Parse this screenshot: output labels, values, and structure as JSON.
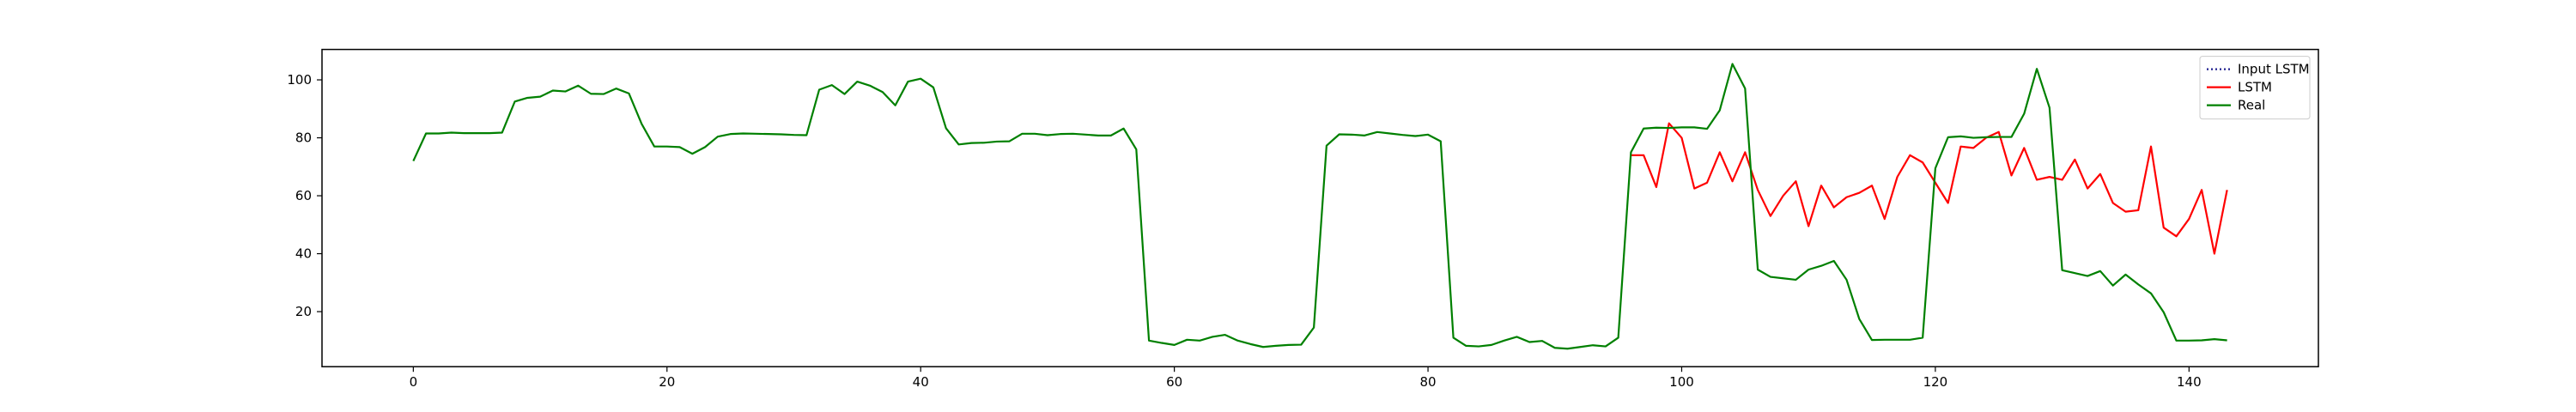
{
  "chart_data": {
    "type": "line",
    "title": "",
    "xlabel": "",
    "ylabel": "",
    "xlim": [
      -7.2,
      150.2
    ],
    "ylim": [
      1.0,
      110.5
    ],
    "xticks": [
      0,
      20,
      40,
      60,
      80,
      100,
      120,
      140
    ],
    "yticks": [
      20,
      40,
      60,
      80,
      100
    ],
    "grid": false,
    "legend_position": "top-right",
    "legend": [
      "Input LSTM",
      "LSTM",
      "Real"
    ],
    "series": [
      {
        "name": "Input LSTM",
        "color": "#1f1f8f",
        "style": "dotted",
        "x": [],
        "values": []
      },
      {
        "name": "LSTM",
        "color": "#ff0000",
        "style": "solid",
        "x": [
          96,
          97,
          98,
          99,
          100,
          101,
          102,
          103,
          104,
          105,
          106,
          107,
          108,
          109,
          110,
          111,
          112,
          113,
          114,
          115,
          116,
          117,
          118,
          119,
          120,
          121,
          122,
          123,
          124,
          125,
          126,
          127,
          128,
          129,
          130,
          131,
          132,
          133,
          134,
          135,
          136,
          137,
          138,
          139,
          140,
          141,
          142,
          143
        ],
        "values": [
          74,
          74,
          63,
          85,
          80,
          62.5,
          64.5,
          75,
          65,
          75,
          62,
          53,
          60,
          65,
          49.5,
          63.5,
          56,
          59.5,
          61,
          63.5,
          52,
          66.5,
          74,
          71.5,
          64.5,
          57.5,
          77,
          76.5,
          80,
          82,
          67,
          76.5,
          65.5,
          66.5,
          65.5,
          72.5,
          62.5,
          67.5,
          57.5,
          54.5,
          55,
          77,
          49,
          46,
          52,
          62,
          40,
          62
        ]
      },
      {
        "name": "Real",
        "color": "#008000",
        "style": "solid",
        "x": [
          0,
          1,
          2,
          3,
          4,
          5,
          6,
          7,
          8,
          9,
          10,
          11,
          12,
          13,
          14,
          15,
          16,
          17,
          18,
          19,
          20,
          21,
          22,
          23,
          24,
          25,
          26,
          27,
          28,
          29,
          30,
          31,
          32,
          33,
          34,
          35,
          36,
          37,
          38,
          39,
          40,
          41,
          42,
          43,
          44,
          45,
          46,
          47,
          48,
          49,
          50,
          51,
          52,
          53,
          54,
          55,
          56,
          57,
          58,
          59,
          60,
          61,
          62,
          63,
          64,
          65,
          66,
          67,
          68,
          69,
          70,
          71,
          72,
          73,
          74,
          75,
          76,
          77,
          78,
          79,
          80,
          81,
          82,
          83,
          84,
          85,
          86,
          87,
          88,
          89,
          90,
          91,
          92,
          93,
          94,
          95,
          96,
          97,
          98,
          99,
          100,
          101,
          102,
          103,
          104,
          105,
          106,
          107,
          108,
          109,
          110,
          111,
          112,
          113,
          114,
          115,
          116,
          117,
          118,
          119,
          120,
          121,
          122,
          123,
          124,
          125,
          126,
          127,
          128,
          129,
          130,
          131,
          132,
          133,
          134,
          135,
          136,
          137,
          138,
          139,
          140,
          141,
          142,
          143
        ],
        "values": [
          72,
          81.5,
          81.5,
          81.8,
          81.6,
          81.6,
          81.6,
          81.8,
          92.5,
          93.8,
          94.2,
          96.3,
          96,
          98,
          95.2,
          95.1,
          97,
          95.3,
          84.8,
          77,
          77,
          76.8,
          74.5,
          76.8,
          80.4,
          81.3,
          81.5,
          81.4,
          81.3,
          81.2,
          81,
          80.9,
          96.6,
          98.2,
          95.1,
          99.4,
          98,
          95.8,
          91.2,
          99.4,
          100.4,
          97.4,
          83.3,
          77.7,
          78.2,
          78.3,
          78.7,
          78.8,
          81.4,
          81.4,
          80.9,
          81.3,
          81.4,
          81.1,
          80.8,
          80.8,
          83.2,
          76,
          10,
          9.2,
          8.5,
          10.3,
          10,
          11.3,
          12,
          10,
          8.8,
          7.8,
          8.2,
          8.5,
          8.6,
          14.5,
          77.3,
          81.2,
          81.1,
          80.8,
          82,
          81.5,
          81,
          80.6,
          81.1,
          78.8,
          11,
          8.2,
          8,
          8.5,
          10,
          11.3,
          9.5,
          9.9,
          7.5,
          7.2,
          7.8,
          8.4,
          8,
          11,
          75,
          83.2,
          83.5,
          83.4,
          83.6,
          83.6,
          83.1,
          89.5,
          105.5,
          97,
          34.5,
          32,
          31.5,
          31,
          34.5,
          35.8,
          37.5,
          31,
          17.5,
          10.2,
          10.3,
          10.3,
          10.3,
          11,
          69.5,
          80.2,
          80.5,
          80,
          80.2,
          80.3,
          80.3,
          88.3,
          103.8,
          90.4,
          34.3,
          33.3,
          32.3,
          34,
          29,
          32.8,
          29.4,
          26.3,
          19.8,
          10,
          10,
          10.1,
          10.5,
          10.1
        ]
      }
    ]
  }
}
